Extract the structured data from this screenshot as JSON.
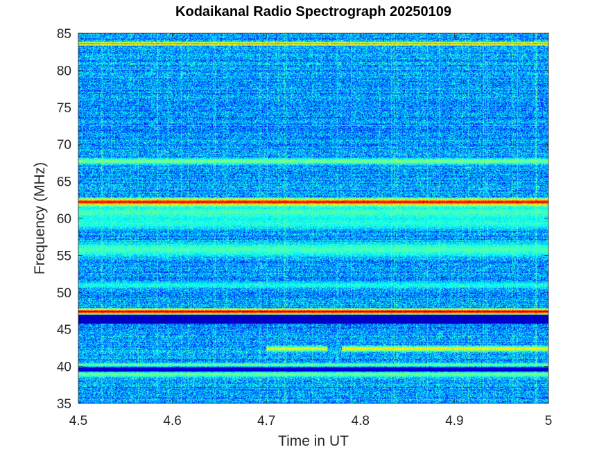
{
  "chart_data": {
    "type": "heatmap",
    "title": "Kodaikanal Radio Spectrograph  20250109",
    "xlabel": "Time in UT",
    "ylabel": "Frequency (MHz)",
    "xlim": [
      4.5,
      5
    ],
    "ylim": [
      35,
      85
    ],
    "x_ticks": [
      4.5,
      4.6,
      4.7,
      4.8,
      4.9,
      5
    ],
    "x_tick_labels": [
      "4.5",
      "4.6",
      "4.7",
      "4.8",
      "4.9",
      "5"
    ],
    "y_ticks": [
      35,
      40,
      45,
      50,
      55,
      60,
      65,
      70,
      75,
      80,
      85
    ],
    "y_tick_labels": [
      "35",
      "40",
      "45",
      "50",
      "55",
      "60",
      "65",
      "70",
      "75",
      "80",
      "85"
    ],
    "colormap": [
      "#00008f",
      "#0000ff",
      "#0080ff",
      "#00ffff",
      "#80ff80",
      "#ffff00",
      "#ff8000",
      "#ff0000",
      "#800000"
    ],
    "background_level": 0.28,
    "bands": [
      {
        "freq": 83.6,
        "width": 0.35,
        "level": 0.78,
        "t_start": 4.5,
        "t_end": 5
      },
      {
        "freq": 67.7,
        "width": 0.6,
        "level": 0.52,
        "t_start": 4.5,
        "t_end": 5
      },
      {
        "freq": 62.2,
        "width": 0.7,
        "level": 0.93,
        "t_start": 4.5,
        "t_end": 5
      },
      {
        "freq": 60.8,
        "width": 1.6,
        "level": 0.45,
        "t_start": 4.5,
        "t_end": 5
      },
      {
        "freq": 59.3,
        "width": 1.2,
        "level": 0.42,
        "t_start": 4.5,
        "t_end": 5
      },
      {
        "freq": 55.8,
        "width": 1.4,
        "level": 0.46,
        "t_start": 4.5,
        "t_end": 5
      },
      {
        "freq": 51.0,
        "width": 0.6,
        "level": 0.4,
        "t_start": 4.5,
        "t_end": 5
      },
      {
        "freq": 47.4,
        "width": 0.55,
        "level": 0.96,
        "t_start": 4.5,
        "t_end": 5
      },
      {
        "freq": 42.4,
        "width": 0.5,
        "level": 0.62,
        "t_start": 4.7,
        "t_end": 4.765
      },
      {
        "freq": 42.4,
        "width": 0.5,
        "level": 0.66,
        "t_start": 4.78,
        "t_end": 5
      },
      {
        "freq": 40.2,
        "width": 0.3,
        "level": 0.5,
        "t_start": 4.5,
        "t_end": 5
      },
      {
        "freq": 38.9,
        "width": 0.5,
        "level": 0.5,
        "t_start": 4.5,
        "t_end": 5
      }
    ],
    "dark_bands": [
      {
        "freq_low": 45.8,
        "freq_high": 47.0,
        "level": 0.06
      },
      {
        "freq_low": 39.3,
        "freq_high": 39.9,
        "level": 0.08
      }
    ],
    "grid": false,
    "colorbar": false
  }
}
